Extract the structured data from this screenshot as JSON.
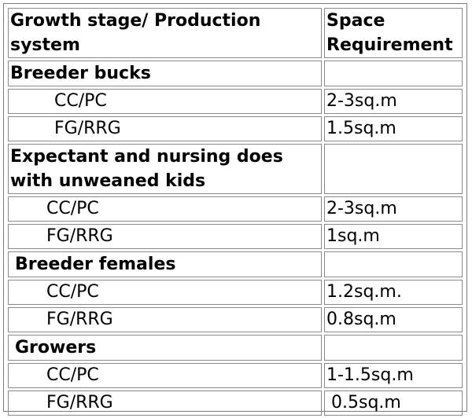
{
  "table": {
    "header": {
      "col1_line1": "Growth stage/ Production",
      "col1_line2": "system",
      "col2_line1": "Space",
      "col2_line2": "Requirement"
    },
    "groups": [
      {
        "label_lines": [
          "Breeder bucks"
        ],
        "rows": [
          {
            "system": "CC/PC",
            "space": "2-3sq.m"
          },
          {
            "system": "FG/RRG",
            "space": "1.5sq.m"
          }
        ]
      },
      {
        "label_lines": [
          "Expectant and nursing does",
          "with unweaned kids"
        ],
        "rows": [
          {
            "system": "CC/PC",
            "space": "2-3sq.m"
          },
          {
            "system": "FG/RRG",
            "space": "1sq.m"
          }
        ]
      },
      {
        "label_lines": [
          "Breeder females"
        ],
        "rows": [
          {
            "system": "CC/PC",
            "space": "1.2sq.m."
          },
          {
            "system": "FG/RRG",
            "space": "0.8sq.m"
          }
        ]
      },
      {
        "label_lines": [
          "Growers"
        ],
        "rows": [
          {
            "system": "CC/PC",
            "space": "1-1.5sq.m"
          },
          {
            "system": "FG/RRG",
            "space": "0.5sq.m"
          }
        ]
      }
    ]
  }
}
